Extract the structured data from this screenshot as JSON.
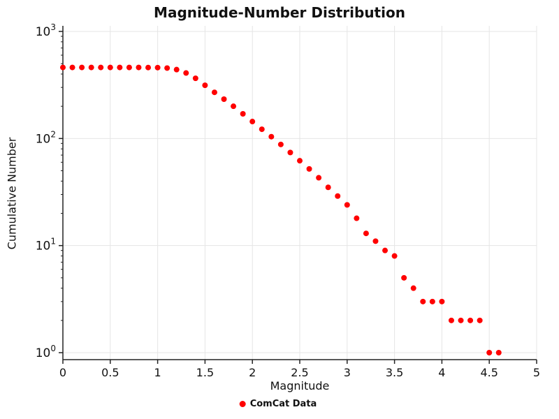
{
  "chart_data": {
    "type": "scatter",
    "title": "Magnitude-Number Distribution",
    "xlabel": "Magnitude",
    "ylabel": "Cumulative Number",
    "legend": "ComCat Data",
    "legend_position": "bottom-center",
    "xlim": [
      0,
      5
    ],
    "ylim": [
      1,
      1000
    ],
    "y_scale": "log",
    "grid": true,
    "x_ticks": [
      {
        "value": 0,
        "label": "0"
      },
      {
        "value": 0.5,
        "label": "0.5"
      },
      {
        "value": 1,
        "label": "1"
      },
      {
        "value": 1.5,
        "label": "1.5"
      },
      {
        "value": 2,
        "label": "2"
      },
      {
        "value": 2.5,
        "label": "2.5"
      },
      {
        "value": 3,
        "label": "3"
      },
      {
        "value": 3.5,
        "label": "3.5"
      },
      {
        "value": 4,
        "label": "4"
      },
      {
        "value": 4.5,
        "label": "4.5"
      },
      {
        "value": 5,
        "label": "5"
      }
    ],
    "y_ticks": [
      {
        "value": 1,
        "base": "10",
        "exponent": "0"
      },
      {
        "value": 10,
        "base": "10",
        "exponent": "1"
      },
      {
        "value": 100,
        "base": "10",
        "exponent": "2"
      },
      {
        "value": 1000,
        "base": "10",
        "exponent": "3"
      }
    ],
    "colors": {
      "point": "#ff0000",
      "grid": "#e5e5e5",
      "axis": "#222222",
      "text": "#111111"
    },
    "series": [
      {
        "name": "ComCat Data",
        "x": [
          0,
          0.1,
          0.2,
          0.3,
          0.4,
          0.5,
          0.6,
          0.7,
          0.8,
          0.9,
          1,
          1.1,
          1.2,
          1.3,
          1.4,
          1.5,
          1.6,
          1.7,
          1.8,
          1.9,
          2,
          2.1,
          2.2,
          2.3,
          2.4,
          2.5,
          2.6,
          2.7,
          2.8,
          2.9,
          3,
          3.1,
          3.2,
          3.3,
          3.4,
          3.5,
          3.6,
          3.7,
          3.8,
          3.9,
          4,
          4.1,
          4.2,
          4.3,
          4.4,
          4.5,
          4.6
        ],
        "y": [
          461,
          461,
          461,
          461,
          461,
          461,
          461,
          461,
          461,
          460,
          459,
          455,
          440,
          409,
          365,
          314,
          270,
          233,
          200,
          170,
          144,
          122,
          104,
          88,
          74,
          62,
          52,
          43,
          35,
          29,
          24,
          18,
          13,
          11,
          9,
          8,
          5,
          4,
          3,
          3,
          3,
          2,
          2,
          2,
          2,
          1,
          1
        ]
      }
    ]
  }
}
